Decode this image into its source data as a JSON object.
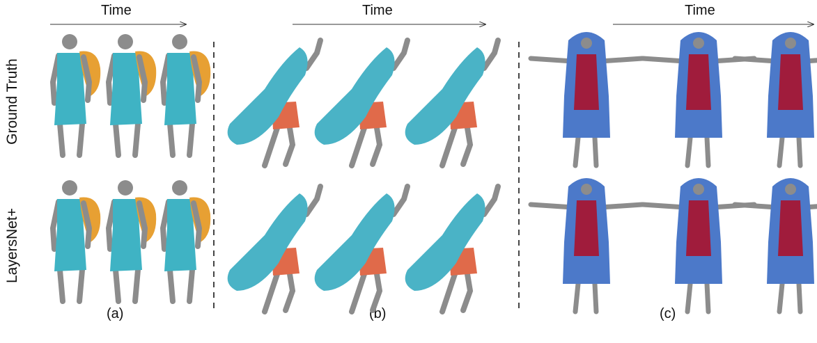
{
  "figure": {
    "time_label": "Time",
    "row_labels": [
      "Ground Truth",
      "LayersNet+"
    ],
    "panels": [
      {
        "label": "(a)",
        "garment_colors": [
          "#3fb3c4",
          "#e7a033"
        ]
      },
      {
        "label": "(b)",
        "garment_colors": [
          "#4ab3c6",
          "#e06a4a"
        ]
      },
      {
        "label": "(c)",
        "garment_colors": [
          "#4c79c9",
          "#a01c3c"
        ]
      }
    ],
    "colors": {
      "body": "#8c8c8c",
      "arrow": "#333333",
      "divider": "#444444"
    }
  }
}
